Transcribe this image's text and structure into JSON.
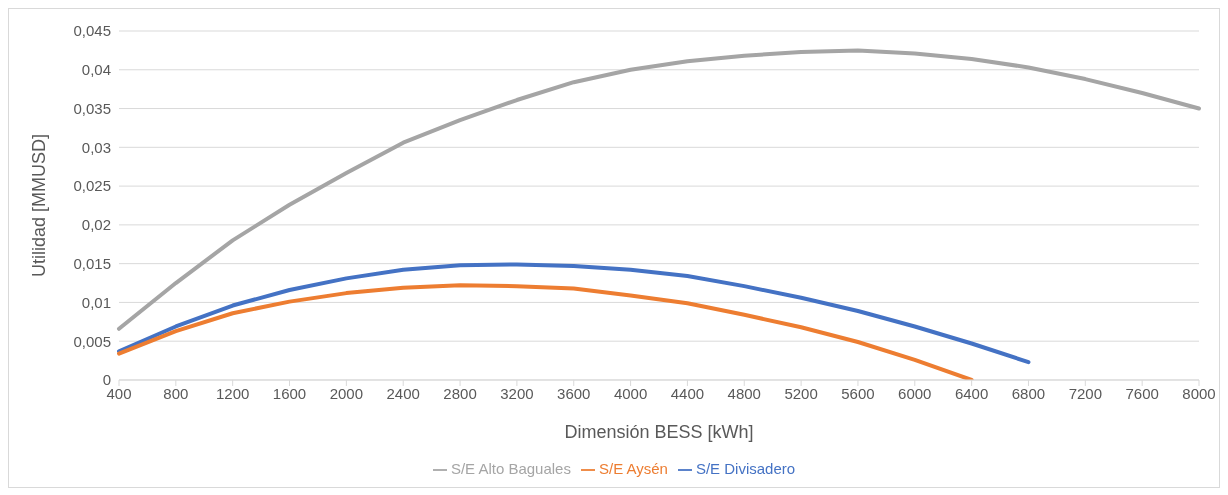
{
  "chart_data": {
    "type": "line",
    "xlabel": "Dimensión BESS [kWh]",
    "ylabel": "Utilidad [MMUSD]",
    "categories": [
      "400",
      "800",
      "1200",
      "1600",
      "2000",
      "2400",
      "2800",
      "3200",
      "3600",
      "4000",
      "4400",
      "4800",
      "5200",
      "5600",
      "6000",
      "6400",
      "6800",
      "7200",
      "7600",
      "8000"
    ],
    "series": [
      {
        "name": "S/E Divisadero",
        "color": "#4472c4",
        "values": [
          0.0037,
          0.0069,
          0.0096,
          0.0116,
          0.0131,
          0.0142,
          0.0148,
          0.0149,
          0.0147,
          0.0142,
          0.0134,
          0.0121,
          0.0106,
          0.0089,
          0.0069,
          0.0047,
          0.0023,
          null,
          null,
          null
        ]
      },
      {
        "name": "S/E Aysén",
        "color": "#ed7d31",
        "values": [
          0.0034,
          0.0063,
          0.0086,
          0.0101,
          0.0112,
          0.0119,
          0.0122,
          0.0121,
          0.0118,
          0.0109,
          0.0099,
          0.0084,
          0.0068,
          0.0049,
          0.0026,
          0,
          null,
          null,
          null,
          null
        ]
      },
      {
        "name": "S/E Alto Baguales",
        "color": "#a5a5a5",
        "values": [
          0.0066,
          0.0125,
          0.018,
          0.0226,
          0.0267,
          0.0306,
          0.0335,
          0.0361,
          0.0384,
          0.04,
          0.0411,
          0.0418,
          0.0423,
          0.0425,
          0.0421,
          0.0414,
          0.0403,
          0.0388,
          0.037,
          0.035
        ]
      }
    ],
    "ylim": [
      0,
      0.045
    ],
    "yticks": [
      0,
      {
        "value": 0.005,
        "label": "0,005"
      },
      {
        "value": 0.01,
        "label": "0,01"
      },
      {
        "value": 0.015,
        "label": "0,015"
      },
      {
        "value": 0.02,
        "label": "0,02"
      },
      {
        "value": 0.025,
        "label": "0,025"
      },
      {
        "value": 0.03,
        "label": "0,03"
      },
      {
        "value": 0.035,
        "label": "0,035"
      },
      {
        "value": 0.04,
        "label": "0,04"
      },
      {
        "value": 0.045,
        "label": "0,045"
      }
    ],
    "grid": "y",
    "legend": "bottom",
    "marker": "none",
    "line_style": "solid"
  }
}
